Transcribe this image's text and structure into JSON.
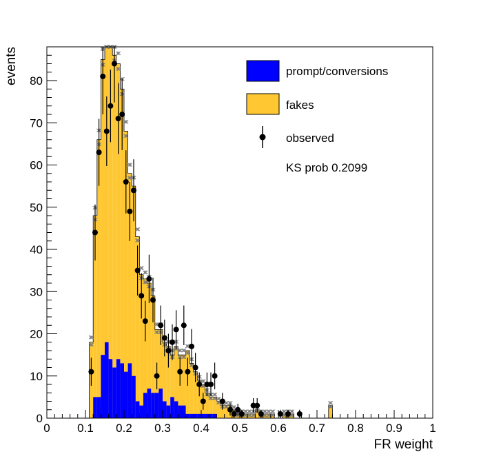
{
  "chart_data": {
    "type": "bar",
    "xlabel": "FR weight",
    "ylabel": "events",
    "xlim": [
      0,
      1
    ],
    "ylim": [
      0,
      88
    ],
    "bin_width": 0.01,
    "x_ticks": [
      "0",
      "0.1",
      "0.2",
      "0.3",
      "0.4",
      "0.5",
      "0.6",
      "0.7",
      "0.8",
      "0.9",
      "1"
    ],
    "y_ticks": [
      "0",
      "10",
      "20",
      "30",
      "40",
      "50",
      "60",
      "70",
      "80"
    ],
    "series": [
      {
        "name": "prompt/conversions",
        "color": "#0000ff",
        "style": "stacked-histogram",
        "bins": [
          [
            0.12,
            5
          ],
          [
            0.13,
            5
          ],
          [
            0.14,
            15
          ],
          [
            0.15,
            18
          ],
          [
            0.16,
            14
          ],
          [
            0.17,
            12
          ],
          [
            0.18,
            14
          ],
          [
            0.19,
            13
          ],
          [
            0.2,
            11
          ],
          [
            0.21,
            13
          ],
          [
            0.22,
            10
          ],
          [
            0.23,
            4
          ],
          [
            0.24,
            3
          ],
          [
            0.25,
            6
          ],
          [
            0.26,
            7
          ],
          [
            0.27,
            6
          ],
          [
            0.28,
            6
          ],
          [
            0.29,
            7
          ],
          [
            0.3,
            4
          ],
          [
            0.31,
            3
          ],
          [
            0.32,
            5
          ],
          [
            0.33,
            4
          ],
          [
            0.34,
            3
          ],
          [
            0.35,
            3
          ],
          [
            0.36,
            1
          ],
          [
            0.37,
            1
          ],
          [
            0.38,
            1
          ],
          [
            0.39,
            1
          ],
          [
            0.4,
            1
          ],
          [
            0.41,
            1
          ],
          [
            0.42,
            1
          ],
          [
            0.43,
            1
          ]
        ]
      },
      {
        "name": "fakes",
        "color": "#ffc832",
        "style": "stacked-histogram",
        "totals": [
          [
            0.11,
            18
          ],
          [
            0.12,
            48
          ],
          [
            0.13,
            66
          ],
          [
            0.14,
            85
          ],
          [
            0.15,
            90
          ],
          [
            0.16,
            90
          ],
          [
            0.17,
            86
          ],
          [
            0.18,
            84
          ],
          [
            0.19,
            78
          ],
          [
            0.2,
            68
          ],
          [
            0.21,
            58
          ],
          [
            0.22,
            55
          ],
          [
            0.23,
            43
          ],
          [
            0.24,
            34
          ],
          [
            0.25,
            33
          ],
          [
            0.26,
            32
          ],
          [
            0.27,
            29
          ],
          [
            0.28,
            21
          ],
          [
            0.29,
            21
          ],
          [
            0.3,
            18
          ],
          [
            0.31,
            17
          ],
          [
            0.32,
            15
          ],
          [
            0.33,
            17
          ],
          [
            0.34,
            15
          ],
          [
            0.35,
            15
          ],
          [
            0.36,
            16
          ],
          [
            0.37,
            13
          ],
          [
            0.38,
            11
          ],
          [
            0.39,
            9
          ],
          [
            0.4,
            8
          ],
          [
            0.41,
            6
          ],
          [
            0.42,
            5
          ],
          [
            0.43,
            5
          ],
          [
            0.44,
            4
          ],
          [
            0.45,
            3
          ],
          [
            0.46,
            3
          ],
          [
            0.47,
            3
          ],
          [
            0.48,
            2
          ],
          [
            0.49,
            1
          ],
          [
            0.5,
            1
          ],
          [
            0.51,
            1
          ],
          [
            0.52,
            1
          ],
          [
            0.53,
            1
          ],
          [
            0.54,
            2
          ],
          [
            0.55,
            1
          ],
          [
            0.56,
            1
          ],
          [
            0.57,
            1
          ],
          [
            0.58,
            1
          ],
          [
            0.61,
            1
          ],
          [
            0.62,
            1
          ],
          [
            0.63,
            1
          ],
          [
            0.73,
            3
          ]
        ]
      },
      {
        "name": "observed",
        "color": "#000000",
        "style": "points-with-errors",
        "points": [
          [
            0.115,
            11
          ],
          [
            0.125,
            44
          ],
          [
            0.135,
            63
          ],
          [
            0.145,
            81
          ],
          [
            0.155,
            68
          ],
          [
            0.165,
            74
          ],
          [
            0.175,
            84
          ],
          [
            0.185,
            71
          ],
          [
            0.195,
            72
          ],
          [
            0.205,
            56
          ],
          [
            0.215,
            49
          ],
          [
            0.225,
            54
          ],
          [
            0.235,
            35
          ],
          [
            0.245,
            29
          ],
          [
            0.255,
            23
          ],
          [
            0.265,
            33
          ],
          [
            0.275,
            28
          ],
          [
            0.285,
            10
          ],
          [
            0.295,
            22
          ],
          [
            0.305,
            19
          ],
          [
            0.315,
            16
          ],
          [
            0.325,
            18
          ],
          [
            0.335,
            21
          ],
          [
            0.345,
            11
          ],
          [
            0.355,
            22
          ],
          [
            0.365,
            11
          ],
          [
            0.375,
            17
          ],
          [
            0.385,
            12
          ],
          [
            0.395,
            8
          ],
          [
            0.405,
            4
          ],
          [
            0.415,
            8
          ],
          [
            0.425,
            8
          ],
          [
            0.435,
            10
          ],
          [
            0.455,
            4
          ],
          [
            0.475,
            2
          ],
          [
            0.485,
            1
          ],
          [
            0.495,
            2
          ],
          [
            0.505,
            1
          ],
          [
            0.535,
            3
          ],
          [
            0.545,
            3
          ],
          [
            0.555,
            1
          ],
          [
            0.605,
            1
          ],
          [
            0.625,
            1
          ],
          [
            0.655,
            1
          ]
        ]
      }
    ],
    "uncertainty_markers": "grey x-marks above stacked total",
    "legend": {
      "placement": "top-right",
      "entries": [
        "prompt/conversions",
        "fakes",
        "observed"
      ],
      "annotation": "KS prob 0.2099"
    }
  }
}
